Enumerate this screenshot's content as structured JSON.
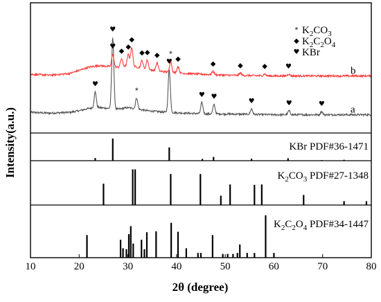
{
  "chart_data": {
    "type": "line",
    "xlabel": "2θ (degree)",
    "ylabel": "Intensity(a.u.)",
    "xlim": [
      10,
      80
    ],
    "x_ticks": [
      10,
      20,
      30,
      40,
      50,
      60,
      70,
      80
    ],
    "legend": {
      "placement": "top-right",
      "entries": [
        {
          "symbol": "*",
          "html": "K<sub>2</sub>CO<sub>3</sub>",
          "text": "K2CO3",
          "parts": [
            {
              "t": "K",
              "sub": false
            },
            {
              "t": "2",
              "sub": true
            },
            {
              "t": "CO",
              "sub": false
            },
            {
              "t": "3",
              "sub": true
            }
          ]
        },
        {
          "symbol": "◆",
          "text": "K2C2O4",
          "parts": [
            {
              "t": "K",
              "sub": false
            },
            {
              "t": "2",
              "sub": true
            },
            {
              "t": "C",
              "sub": false
            },
            {
              "t": "2",
              "sub": true
            },
            {
              "t": "O",
              "sub": false
            },
            {
              "t": "4",
              "sub": true
            }
          ]
        },
        {
          "symbol": "♥",
          "text": "KBr",
          "parts": [
            {
              "t": "KBr",
              "sub": false
            }
          ]
        }
      ]
    },
    "colors": {
      "a": "#555555",
      "b": "#ff3b3b",
      "reference": "#000000"
    },
    "series": [
      {
        "name": "a",
        "color": "#555555",
        "baseline": [
          [
            10,
            0.06
          ],
          [
            14,
            0.055
          ],
          [
            18,
            0.06
          ],
          [
            20,
            0.07
          ],
          [
            22,
            0.085
          ],
          [
            24,
            0.09
          ],
          [
            26,
            0.085
          ],
          [
            28,
            0.08
          ],
          [
            30,
            0.09
          ],
          [
            32,
            0.08
          ],
          [
            34,
            0.07
          ],
          [
            38,
            0.06
          ],
          [
            42,
            0.055
          ],
          [
            46,
            0.05
          ],
          [
            50,
            0.05
          ],
          [
            60,
            0.045
          ],
          [
            70,
            0.045
          ],
          [
            80,
            0.045
          ]
        ],
        "peaks": [
          [
            23.3,
            0.1
          ],
          [
            26.9,
            0.45
          ],
          [
            31.8,
            0.07
          ],
          [
            38.5,
            0.27
          ],
          [
            45.2,
            0.07
          ],
          [
            47.7,
            0.06
          ],
          [
            55.4,
            0.035
          ],
          [
            63.1,
            0.025
          ],
          [
            69.8,
            0.02
          ]
        ],
        "markers": [
          {
            "x": 23.3,
            "symbol": "♥"
          },
          {
            "x": 26.9,
            "symbol": "♥"
          },
          {
            "x": 31.8,
            "symbol": "*"
          },
          {
            "x": 38.5,
            "symbol": "♥"
          },
          {
            "x": 45.2,
            "symbol": "♥"
          },
          {
            "x": 47.7,
            "symbol": "♥"
          },
          {
            "x": 55.4,
            "symbol": "♥"
          },
          {
            "x": 63.1,
            "symbol": "♥"
          },
          {
            "x": 69.8,
            "symbol": "♥"
          }
        ]
      },
      {
        "name": "b",
        "color": "#ff3b3b",
        "baseline": [
          [
            10,
            0.055
          ],
          [
            14,
            0.05
          ],
          [
            18,
            0.06
          ],
          [
            20,
            0.08
          ],
          [
            22,
            0.1
          ],
          [
            24,
            0.11
          ],
          [
            26,
            0.105
          ],
          [
            28,
            0.1
          ],
          [
            30,
            0.11
          ],
          [
            32,
            0.1
          ],
          [
            34,
            0.085
          ],
          [
            38,
            0.07
          ],
          [
            42,
            0.06
          ],
          [
            46,
            0.055
          ],
          [
            50,
            0.05
          ],
          [
            60,
            0.045
          ],
          [
            70,
            0.045
          ],
          [
            80,
            0.045
          ]
        ],
        "peaks": [
          [
            26.9,
            0.08
          ],
          [
            28.7,
            0.05
          ],
          [
            30.1,
            0.07
          ],
          [
            30.8,
            0.12
          ],
          [
            32.9,
            0.05
          ],
          [
            34.0,
            0.06
          ],
          [
            36.0,
            0.05
          ],
          [
            38.8,
            0.07
          ],
          [
            40.3,
            0.04
          ],
          [
            47.5,
            0.02
          ],
          [
            53.1,
            0.015
          ],
          [
            58.1,
            0.012
          ],
          [
            63.0,
            0.012
          ]
        ],
        "markers": [
          {
            "x": 26.9,
            "symbol": "♥"
          },
          {
            "x": 28.7,
            "symbol": "◆"
          },
          {
            "x": 30.1,
            "symbol": "◆"
          },
          {
            "x": 30.8,
            "symbol": "◆"
          },
          {
            "x": 32.9,
            "symbol": "◆"
          },
          {
            "x": 34.0,
            "symbol": "◆"
          },
          {
            "x": 36.0,
            "symbol": "◆"
          },
          {
            "x": 38.8,
            "symbol": "*"
          },
          {
            "x": 40.3,
            "symbol": "◆"
          },
          {
            "x": 47.5,
            "symbol": "◆"
          },
          {
            "x": 53.1,
            "symbol": "◆"
          },
          {
            "x": 58.1,
            "symbol": "◆"
          },
          {
            "x": 63.0,
            "symbol": "♥"
          }
        ]
      }
    ],
    "reference_panels": [
      {
        "label": "KBr PDF#36-1471",
        "parts": [
          {
            "t": "KBr PDF#36-1471",
            "sub": false
          }
        ],
        "lines": [
          [
            23.3,
            0.12
          ],
          [
            26.9,
            1.0
          ],
          [
            38.5,
            0.6
          ],
          [
            45.3,
            0.08
          ],
          [
            47.6,
            0.17
          ],
          [
            55.4,
            0.09
          ],
          [
            62.9,
            0.11
          ],
          [
            69.8,
            0.03
          ],
          [
            74.4,
            0.04
          ]
        ]
      },
      {
        "label": "K2CO3 PDF#27-1348",
        "parts": [
          {
            "t": "K",
            "sub": false
          },
          {
            "t": "2",
            "sub": true
          },
          {
            "t": "CO",
            "sub": false
          },
          {
            "t": "3",
            "sub": true
          },
          {
            "t": " PDF#27-1348",
            "sub": false
          }
        ],
        "lines": [
          [
            25.0,
            0.55
          ],
          [
            31.0,
            0.92
          ],
          [
            31.5,
            0.92
          ],
          [
            38.8,
            0.8
          ],
          [
            44.9,
            0.8
          ],
          [
            49.1,
            0.24
          ],
          [
            51.0,
            0.53
          ],
          [
            56.0,
            0.52
          ],
          [
            57.5,
            0.53
          ],
          [
            66.1,
            0.26
          ],
          [
            74.4,
            0.1
          ],
          [
            79.0,
            0.1
          ]
        ]
      },
      {
        "label": "K2C2O4 PDF#34-1447",
        "parts": [
          {
            "t": "K",
            "sub": false
          },
          {
            "t": "2",
            "sub": true
          },
          {
            "t": "C",
            "sub": false
          },
          {
            "t": "2",
            "sub": true
          },
          {
            "t": "O",
            "sub": false
          },
          {
            "t": "4",
            "sub": true
          },
          {
            "t": " PDF#34-1447",
            "sub": false
          }
        ],
        "lines": [
          [
            21.6,
            0.48
          ],
          [
            28.5,
            0.38
          ],
          [
            29.0,
            0.2
          ],
          [
            29.7,
            0.18
          ],
          [
            30.2,
            0.5
          ],
          [
            30.6,
            0.67
          ],
          [
            31.1,
            0.3
          ],
          [
            32.8,
            0.38
          ],
          [
            33.4,
            0.18
          ],
          [
            33.9,
            0.54
          ],
          [
            35.8,
            0.56
          ],
          [
            38.9,
            0.74
          ],
          [
            40.3,
            0.55
          ],
          [
            42.0,
            0.2
          ],
          [
            44.4,
            0.1
          ],
          [
            45.0,
            0.1
          ],
          [
            47.4,
            0.48
          ],
          [
            49.5,
            0.08
          ],
          [
            50.5,
            0.08
          ],
          [
            51.6,
            0.08
          ],
          [
            52.5,
            0.1
          ],
          [
            53.0,
            0.28
          ],
          [
            54.5,
            0.1
          ],
          [
            56.0,
            0.1
          ],
          [
            58.3,
            0.9
          ],
          [
            60.0,
            0.1
          ]
        ]
      }
    ]
  }
}
